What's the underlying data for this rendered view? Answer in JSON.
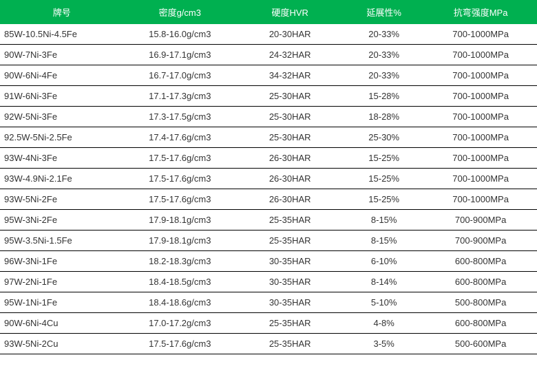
{
  "table": {
    "header_bg": "#00b050",
    "header_color": "#ffffff",
    "row_border_color": "#000000",
    "text_color": "#333333",
    "columns": [
      {
        "label": "牌号"
      },
      {
        "label": "密度g/cm3"
      },
      {
        "label": "硬度HVR"
      },
      {
        "label": "延展性%"
      },
      {
        "label": "抗弯强度MPa"
      }
    ],
    "rows": [
      [
        "85W-10.5Ni-4.5Fe",
        "15.8-16.0g/cm3",
        "20-30HAR",
        "20-33%",
        "700-1000MPa"
      ],
      [
        "90W-7Ni-3Fe",
        "16.9-17.1g/cm3",
        "24-32HAR",
        "20-33%",
        "700-1000MPa"
      ],
      [
        "90W-6Ni-4Fe",
        "16.7-17.0g/cm3",
        "34-32HAR",
        "20-33%",
        "700-1000MPa"
      ],
      [
        "91W-6Ni-3Fe",
        "17.1-17.3g/cm3",
        "25-30HAR",
        "15-28%",
        "700-1000MPa"
      ],
      [
        "92W-5Ni-3Fe",
        "17.3-17.5g/cm3",
        "25-30HAR",
        "18-28%",
        "700-1000MPa"
      ],
      [
        "92.5W-5Ni-2.5Fe",
        "17.4-17.6g/cm3",
        "25-30HAR",
        "25-30%",
        "700-1000MPa"
      ],
      [
        "93W-4Ni-3Fe",
        "17.5-17.6g/cm3",
        "26-30HAR",
        "15-25%",
        "700-1000MPa"
      ],
      [
        "93W-4.9Ni-2.1Fe",
        "17.5-17.6g/cm3",
        "26-30HAR",
        "15-25%",
        "700-1000MPa"
      ],
      [
        "93W-5Ni-2Fe",
        "17.5-17.6g/cm3",
        "26-30HAR",
        "15-25%",
        "700-1000MPa"
      ],
      [
        "95W-3Ni-2Fe",
        "17.9-18.1g/cm3",
        "25-35HAR",
        "8-15%",
        "700-900MPa"
      ],
      [
        "95W-3.5Ni-1.5Fe",
        "17.9-18.1g/cm3",
        "25-35HAR",
        "8-15%",
        "700-900MPa"
      ],
      [
        "96W-3Ni-1Fe",
        "18.2-18.3g/cm3",
        "30-35HAR",
        "6-10%",
        "600-800MPa"
      ],
      [
        "97W-2Ni-1Fe",
        "18.4-18.5g/cm3",
        "30-35HAR",
        "8-14%",
        "600-800MPa"
      ],
      [
        "95W-1Ni-1Fe",
        "18.4-18.6g/cm3",
        "30-35HAR",
        "5-10%",
        "500-800MPa"
      ],
      [
        "90W-6Ni-4Cu",
        "17.0-17.2g/cm3",
        "25-35HAR",
        "4-8%",
        "600-800MPa"
      ],
      [
        "93W-5Ni-2Cu",
        "17.5-17.6g/cm3",
        "25-35HAR",
        "3-5%",
        "500-600MPa"
      ]
    ]
  }
}
